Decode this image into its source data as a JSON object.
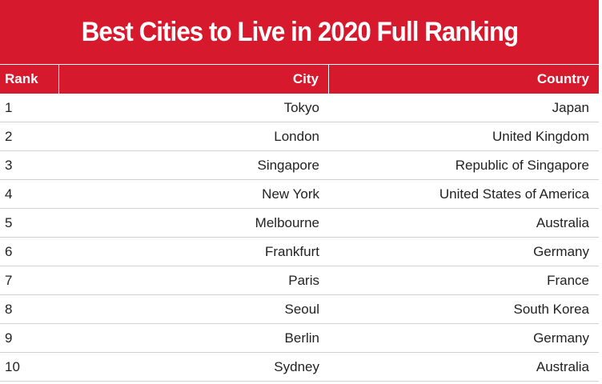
{
  "title": "Best Cities to Live in 2020 Full Ranking",
  "columns": {
    "rank": "Rank",
    "city": "City",
    "country": "Country"
  },
  "rows": [
    {
      "rank": "1",
      "city": "Tokyo",
      "country": "Japan"
    },
    {
      "rank": "2",
      "city": "London",
      "country": "United Kingdom"
    },
    {
      "rank": "3",
      "city": "Singapore",
      "country": "Republic of Singapore"
    },
    {
      "rank": "4",
      "city": "New York",
      "country": "United States of America"
    },
    {
      "rank": "5",
      "city": "Melbourne",
      "country": "Australia"
    },
    {
      "rank": "6",
      "city": "Frankfurt",
      "country": "Germany"
    },
    {
      "rank": "7",
      "city": "Paris",
      "country": "France"
    },
    {
      "rank": "8",
      "city": "Seoul",
      "country": "South Korea"
    },
    {
      "rank": "9",
      "city": "Berlin",
      "country": "Germany"
    },
    {
      "rank": "10",
      "city": "Sydney",
      "country": "Australia"
    }
  ],
  "colors": {
    "accent": "#d7192d",
    "text": "#222222",
    "divider": "#d0d0d0"
  }
}
